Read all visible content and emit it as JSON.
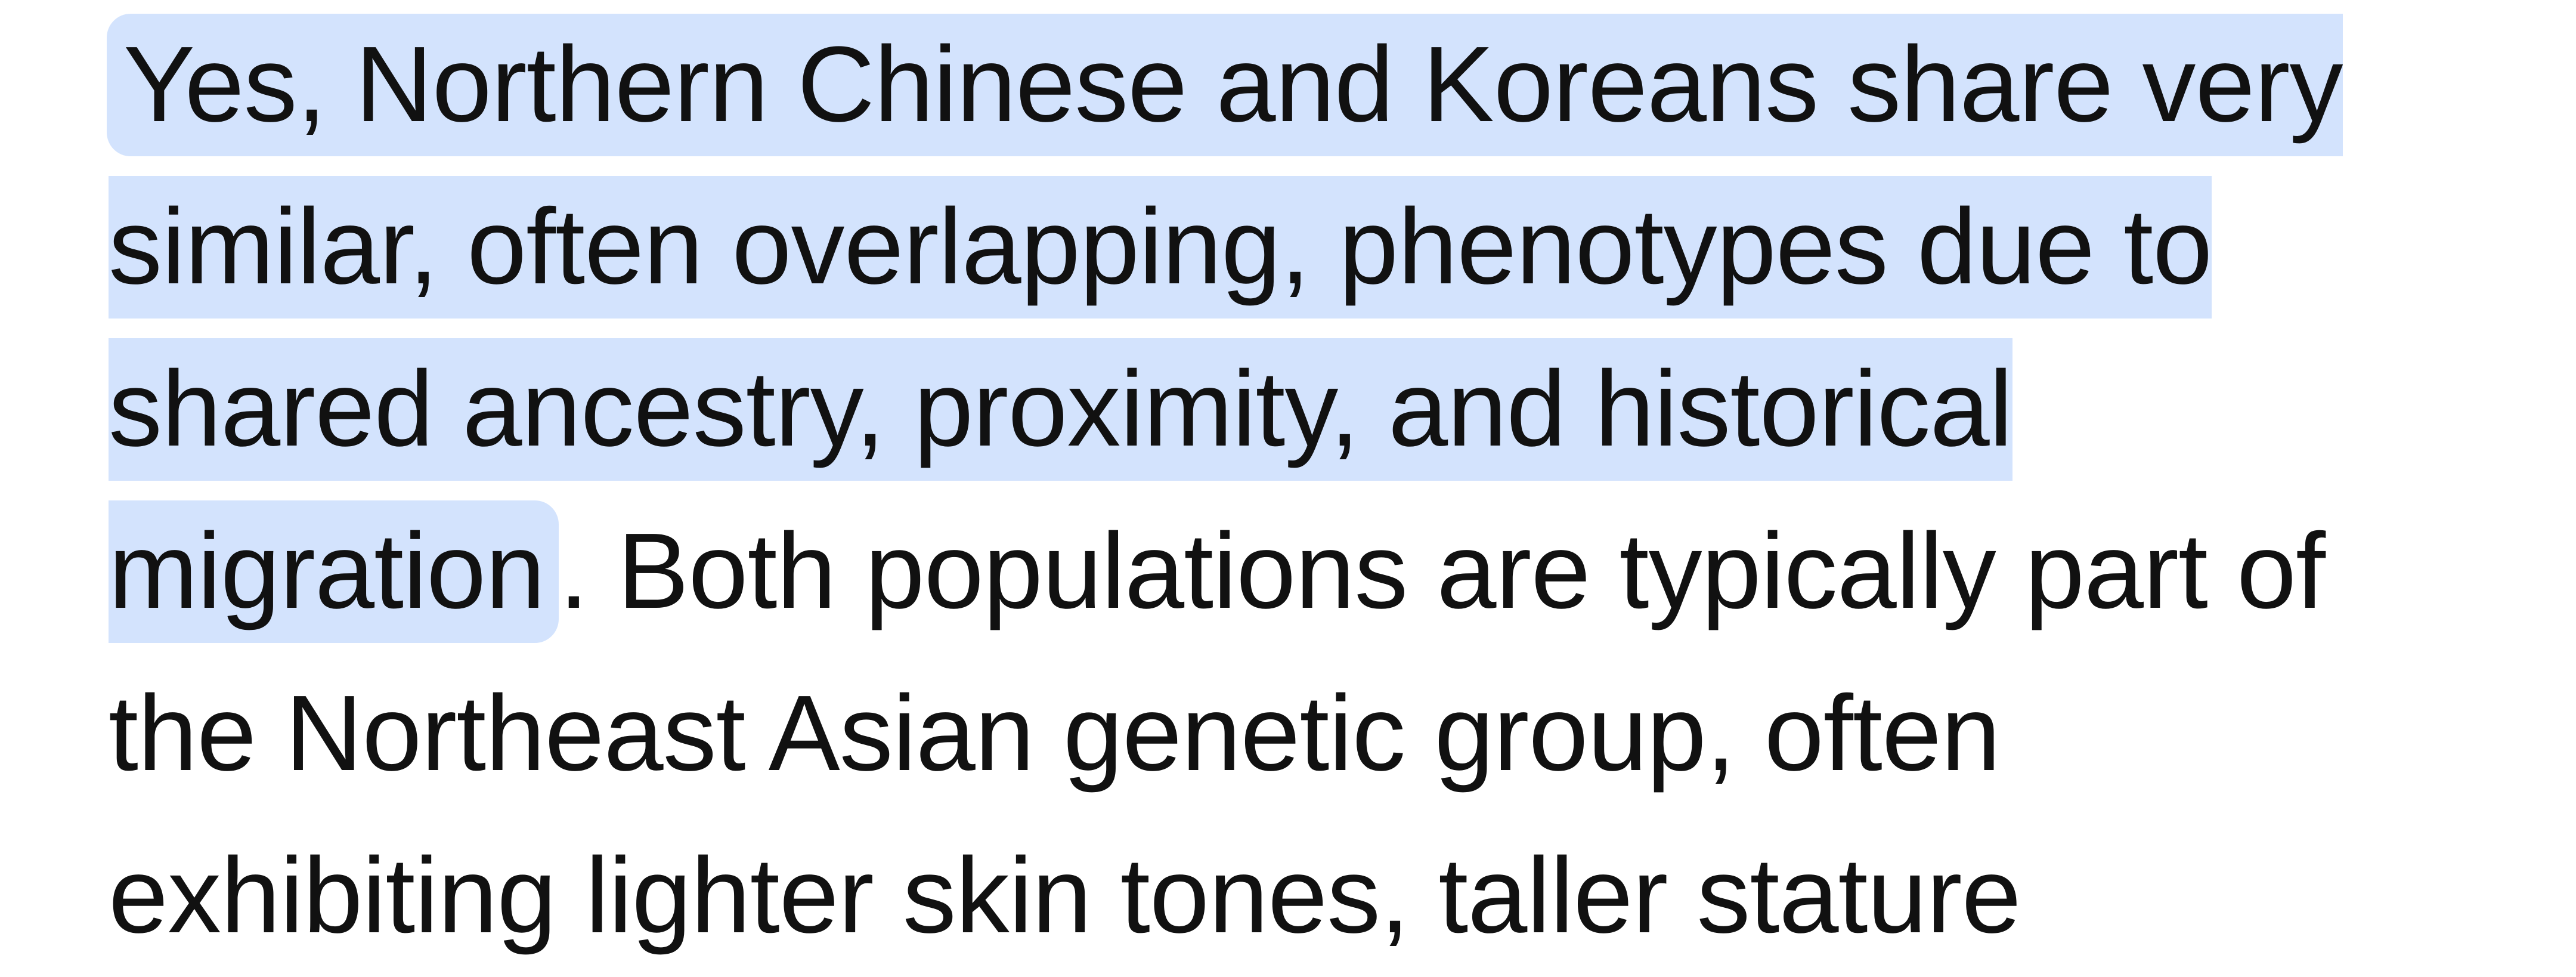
{
  "highlight_color": "#d3e3fd",
  "paragraph": {
    "lines": [
      {
        "highlighted": "Yes, Northern Chinese and Koreans share very",
        "plain": ""
      },
      {
        "highlighted": "similar, often overlapping, phenotypes due to",
        "plain": ""
      },
      {
        "highlighted": "shared ancestry, proximity, and historical",
        "plain": ""
      },
      {
        "highlighted": "migration",
        "plain": ". Both populations are typically part of"
      },
      {
        "highlighted": "",
        "plain": "the Northeast Asian genetic group, often"
      },
      {
        "highlighted": "",
        "plain": "exhibiting lighter skin tones, taller stature"
      }
    ]
  }
}
